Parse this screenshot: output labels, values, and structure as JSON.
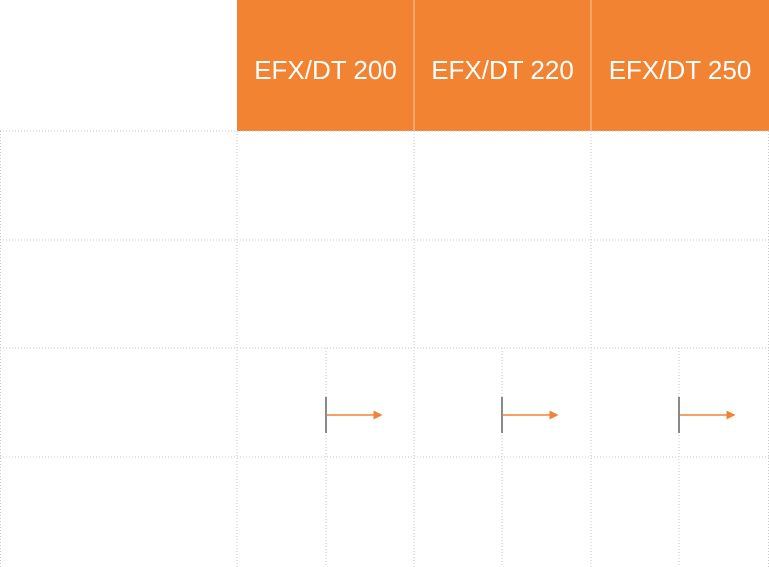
{
  "table": {
    "headers": [
      "EFX/DT 200",
      "EFX/DT 220",
      "EFX/DT 250"
    ]
  }
}
